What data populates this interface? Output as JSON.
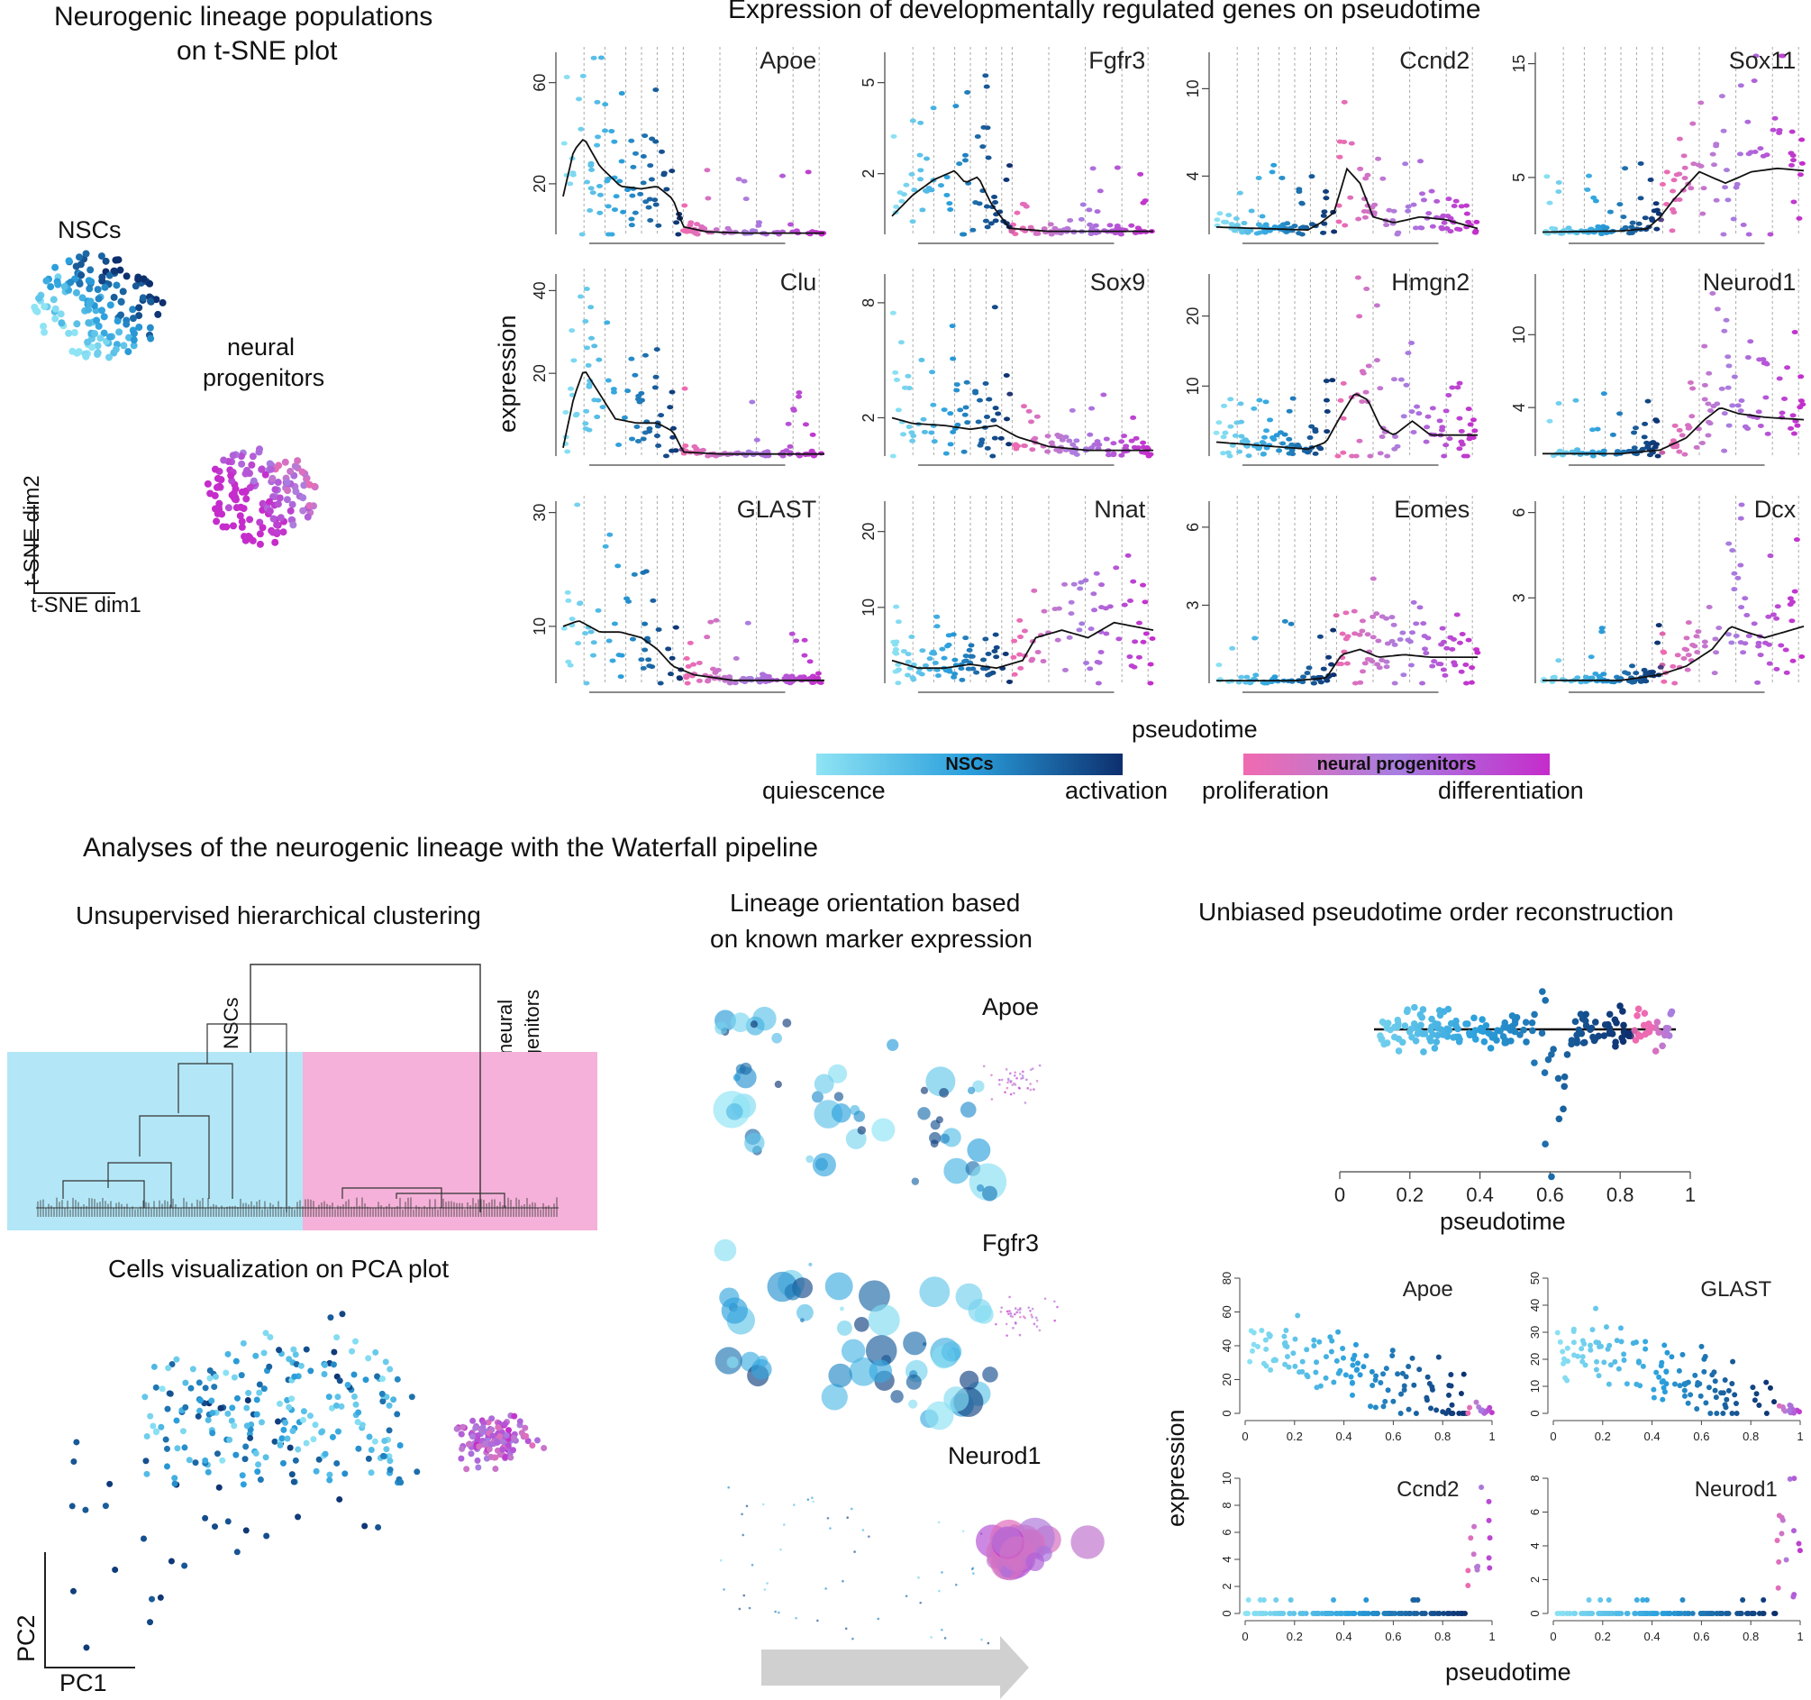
{
  "panels": {
    "tsne": {
      "title_line1": "Neurogenic lineage populations",
      "title_line2": "on t-SNE plot",
      "nsc_label": "NSCs",
      "np_label_line1": "neural",
      "np_label_line2": "progenitors",
      "axis_y": "t-SNE dim2",
      "axis_x": "t-SNE dim1"
    },
    "expression": {
      "title": "Expression of developmentally regulated genes on pseudotime",
      "ylabel": "expression",
      "xlabel": "pseudotime"
    },
    "waterfall": {
      "heading": "Analyses of the neurogenic lineage with the Waterfall pipeline",
      "clustering_title": "Unsupervised hierarchical clustering",
      "clustering_nsc": "NSCs",
      "clustering_np_line1": "neural",
      "clustering_np_line2": "progenitors",
      "pca_title": "Cells visualization on PCA plot",
      "pca_y": "PC2",
      "pca_x": "PC1",
      "orientation_title_line1": "Lineage orientation based",
      "orientation_title_line2": "on known marker expression",
      "orientation_genes": [
        "Apoe",
        "Fgfr3",
        "Neurod1"
      ],
      "pseudotime_title": "Unbiased pseudotime order reconstruction",
      "pseudotime_xlabel": "pseudotime",
      "small_ylabel": "expression",
      "small_xlabel": "pseudotime"
    }
  },
  "legend": {
    "nsc_label": "NSCs",
    "np_label": "neural progenitors",
    "quiescence": "quiescence",
    "activation": "activation",
    "proliferation": "proliferation",
    "differentiation": "differentiation",
    "colors": {
      "quiescence": "#8fe4f4",
      "nsc_mid": "#2a9fdc",
      "activation": "#0d2f6e",
      "proliferation": "#f06ab0",
      "np_mid": "#a77ee0",
      "differentiation": "#c52ccb"
    }
  },
  "chart_data": [
    {
      "type": "scatter",
      "title": "Expression of developmentally regulated genes on pseudotime",
      "ylabel": "expression",
      "xlabel": "pseudotime",
      "panels": [
        {
          "gene": "Apoe",
          "yticks": [
            20,
            60
          ],
          "ymax": 72,
          "curve": [
            [
              0,
              15
            ],
            [
              0.04,
              33
            ],
            [
              0.08,
              38
            ],
            [
              0.14,
              27
            ],
            [
              0.22,
              19
            ],
            [
              0.3,
              18
            ],
            [
              0.36,
              19
            ],
            [
              0.42,
              14
            ],
            [
              0.46,
              3
            ],
            [
              0.55,
              1
            ],
            [
              0.7,
              0.5
            ],
            [
              1,
              0.5
            ]
          ]
        },
        {
          "gene": "Fgfr3",
          "yticks": [
            2,
            5
          ],
          "ymax": 6,
          "curve": [
            [
              0,
              0.6
            ],
            [
              0.08,
              1.3
            ],
            [
              0.16,
              1.8
            ],
            [
              0.24,
              2.1
            ],
            [
              0.28,
              1.7
            ],
            [
              0.33,
              1.9
            ],
            [
              0.38,
              1.0
            ],
            [
              0.45,
              0.2
            ],
            [
              0.6,
              0.1
            ],
            [
              1,
              0.1
            ]
          ]
        },
        {
          "gene": "Ccnd2",
          "yticks": [
            4,
            10
          ],
          "ymax": 12.5,
          "curve": [
            [
              0,
              0.5
            ],
            [
              0.35,
              0.3
            ],
            [
              0.4,
              0.8
            ],
            [
              0.45,
              1.5
            ],
            [
              0.5,
              4.5
            ],
            [
              0.55,
              3.5
            ],
            [
              0.6,
              1.2
            ],
            [
              0.68,
              0.8
            ],
            [
              0.78,
              1.2
            ],
            [
              0.88,
              1.0
            ],
            [
              1,
              0.4
            ]
          ]
        },
        {
          "gene": "Sox11",
          "yticks": [
            5,
            15
          ],
          "ymax": 16,
          "curve": [
            [
              0,
              0.2
            ],
            [
              0.3,
              0.3
            ],
            [
              0.4,
              0.5
            ],
            [
              0.45,
              1.5
            ],
            [
              0.5,
              3.0
            ],
            [
              0.6,
              5.5
            ],
            [
              0.7,
              4.5
            ],
            [
              0.8,
              5.5
            ],
            [
              0.9,
              5.8
            ],
            [
              1,
              5.6
            ]
          ]
        },
        {
          "gene": "Clu",
          "yticks": [
            20,
            40
          ],
          "ymax": 44,
          "curve": [
            [
              0,
              2
            ],
            [
              0.04,
              14
            ],
            [
              0.08,
              21
            ],
            [
              0.13,
              16
            ],
            [
              0.2,
              9
            ],
            [
              0.28,
              8
            ],
            [
              0.36,
              8
            ],
            [
              0.42,
              6
            ],
            [
              0.46,
              1
            ],
            [
              0.6,
              0.5
            ],
            [
              1,
              0.5
            ]
          ]
        },
        {
          "gene": "Sox9",
          "yticks": [
            2,
            8
          ],
          "ymax": 9.5,
          "curve": [
            [
              0,
              2.0
            ],
            [
              0.08,
              1.7
            ],
            [
              0.2,
              1.6
            ],
            [
              0.3,
              1.4
            ],
            [
              0.4,
              1.6
            ],
            [
              0.48,
              1.0
            ],
            [
              0.6,
              0.5
            ],
            [
              0.75,
              0.3
            ],
            [
              1,
              0.3
            ]
          ]
        },
        {
          "gene": "Hmgn2",
          "yticks": [
            10,
            20
          ],
          "ymax": 26,
          "curve": [
            [
              0,
              2
            ],
            [
              0.35,
              1
            ],
            [
              0.42,
              2
            ],
            [
              0.48,
              6
            ],
            [
              0.53,
              9
            ],
            [
              0.58,
              8
            ],
            [
              0.63,
              4
            ],
            [
              0.68,
              3
            ],
            [
              0.75,
              5
            ],
            [
              0.82,
              3
            ],
            [
              0.9,
              3
            ],
            [
              1,
              3
            ]
          ]
        },
        {
          "gene": "Neurod1",
          "yticks": [
            4,
            10
          ],
          "ymax": 15,
          "curve": [
            [
              0,
              0.2
            ],
            [
              0.3,
              0.2
            ],
            [
              0.45,
              0.5
            ],
            [
              0.55,
              1.5
            ],
            [
              0.62,
              3
            ],
            [
              0.68,
              4
            ],
            [
              0.75,
              3.5
            ],
            [
              0.85,
              3.2
            ],
            [
              1,
              3.0
            ]
          ]
        },
        {
          "gene": "GLAST",
          "yticks": [
            10,
            30
          ],
          "ymax": 32,
          "curve": [
            [
              0,
              10
            ],
            [
              0.06,
              11
            ],
            [
              0.14,
              9
            ],
            [
              0.22,
              9
            ],
            [
              0.3,
              8
            ],
            [
              0.36,
              6
            ],
            [
              0.42,
              3
            ],
            [
              0.5,
              1.5
            ],
            [
              0.65,
              0.5
            ],
            [
              1,
              0.5
            ]
          ]
        },
        {
          "gene": "Nnat",
          "yticks": [
            10,
            20
          ],
          "ymax": 24,
          "curve": [
            [
              0,
              3
            ],
            [
              0.1,
              2
            ],
            [
              0.2,
              2
            ],
            [
              0.3,
              2.5
            ],
            [
              0.4,
              2
            ],
            [
              0.5,
              3
            ],
            [
              0.55,
              6
            ],
            [
              0.65,
              7
            ],
            [
              0.75,
              6
            ],
            [
              0.85,
              8
            ],
            [
              1,
              7
            ]
          ]
        },
        {
          "gene": "Eomes",
          "yticks": [
            3,
            6
          ],
          "ymax": 7,
          "curve": [
            [
              0,
              0.1
            ],
            [
              0.3,
              0.1
            ],
            [
              0.42,
              0.2
            ],
            [
              0.48,
              1.1
            ],
            [
              0.55,
              1.3
            ],
            [
              0.62,
              1.0
            ],
            [
              0.72,
              1.1
            ],
            [
              0.82,
              1.0
            ],
            [
              1,
              1.0
            ]
          ]
        },
        {
          "gene": "Dcx",
          "yticks": [
            3,
            6
          ],
          "ymax": 6.4,
          "curve": [
            [
              0,
              0.1
            ],
            [
              0.3,
              0.1
            ],
            [
              0.45,
              0.3
            ],
            [
              0.55,
              0.6
            ],
            [
              0.65,
              1.2
            ],
            [
              0.72,
              2.0
            ],
            [
              0.78,
              1.8
            ],
            [
              0.85,
              1.6
            ],
            [
              1,
              2.0
            ]
          ]
        }
      ]
    },
    {
      "type": "scatter",
      "title": "Unbiased pseudotime order reconstruction",
      "xlabel": "pseudotime",
      "xticks": [
        "0",
        "0.2",
        "0.4",
        "0.6",
        "0.8",
        "1"
      ]
    },
    {
      "type": "scatter",
      "xlabel": "pseudotime",
      "ylabel": "expression",
      "panels": [
        {
          "gene": "Apoe",
          "yticks": [
            "0",
            "20",
            "40",
            "60",
            "80"
          ],
          "ymax": 80
        },
        {
          "gene": "GLAST",
          "yticks": [
            "0",
            "10",
            "20",
            "30",
            "40",
            "50"
          ],
          "ymax": 50
        },
        {
          "gene": "Ccnd2",
          "yticks": [
            "0",
            "2",
            "4",
            "6",
            "8",
            "10"
          ],
          "ymax": 10
        },
        {
          "gene": "Neurod1",
          "yticks": [
            "0",
            "2",
            "4",
            "6",
            "8"
          ],
          "ymax": 8
        }
      ],
      "xticks": [
        "0",
        "0.2",
        "0.4",
        "0.6",
        "0.8",
        "1"
      ]
    }
  ]
}
